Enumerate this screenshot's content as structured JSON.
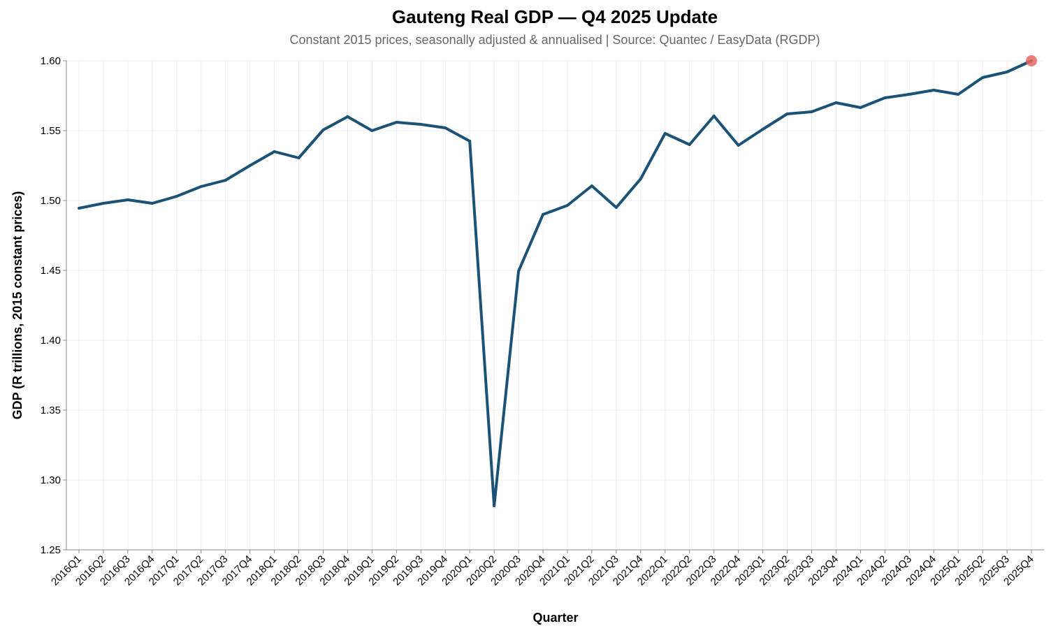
{
  "chart_data": {
    "type": "line",
    "title": "Gauteng Real GDP — Q4 2025 Update",
    "subtitle": "Constant 2015 prices, seasonally adjusted & annualised | Source: Quantec / EasyData (RGDP)",
    "xlabel": "Quarter",
    "ylabel": "GDP (R trillions, 2015 constant prices)",
    "ylim": [
      1.25,
      1.6
    ],
    "yticks": [
      "1.25",
      "1.30",
      "1.35",
      "1.40",
      "1.45",
      "1.50",
      "1.55",
      "1.60"
    ],
    "grid": true,
    "line_color": "#1b5276",
    "highlight_color": "#e8675e",
    "categories": [
      "2016Q1",
      "2016Q2",
      "2016Q3",
      "2016Q4",
      "2017Q1",
      "2017Q2",
      "2017Q3",
      "2017Q4",
      "2018Q1",
      "2018Q2",
      "2018Q3",
      "2018Q4",
      "2019Q1",
      "2019Q2",
      "2019Q3",
      "2019Q4",
      "2020Q1",
      "2020Q2",
      "2020Q3",
      "2020Q4",
      "2021Q1",
      "2021Q2",
      "2021Q3",
      "2021Q4",
      "2022Q1",
      "2022Q2",
      "2022Q3",
      "2022Q4",
      "2023Q1",
      "2023Q2",
      "2023Q3",
      "2023Q4",
      "2024Q1",
      "2024Q2",
      "2024Q3",
      "2024Q4",
      "2025Q1",
      "2025Q2",
      "2025Q3",
      "2025Q4"
    ],
    "series": [
      {
        "name": "Gauteng Real GDP",
        "values": [
          1.4945,
          1.498,
          1.5005,
          1.498,
          1.503,
          1.51,
          1.5145,
          1.525,
          1.535,
          1.5305,
          1.5505,
          1.56,
          1.55,
          1.556,
          1.5545,
          1.552,
          1.5425,
          1.2815,
          1.4495,
          1.49,
          1.4965,
          1.5105,
          1.495,
          1.5155,
          1.548,
          1.54,
          1.5605,
          1.5395,
          1.551,
          1.562,
          1.5635,
          1.57,
          1.5665,
          1.5735,
          1.576,
          1.579,
          1.576,
          1.588,
          1.592,
          1.6
        ]
      }
    ],
    "highlight": {
      "category": "2025Q4",
      "value": 1.6
    }
  }
}
